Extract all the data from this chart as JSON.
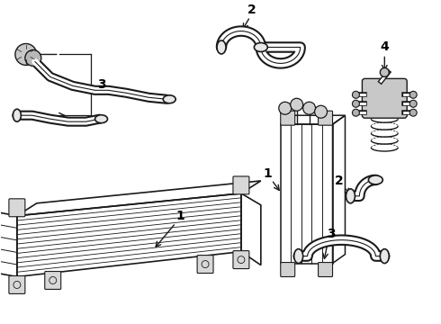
{
  "bg_color": "#ffffff",
  "line_color": "#1a1a1a",
  "label_color": "#000000",
  "fig_w": 4.9,
  "fig_h": 3.6,
  "dpi": 100
}
